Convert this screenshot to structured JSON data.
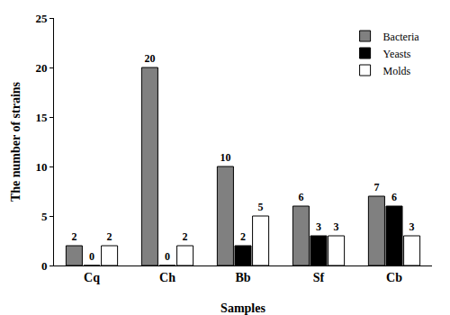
{
  "chart_data": {
    "type": "bar",
    "x_label": "Samples",
    "y_label": "The number of strains",
    "categories": [
      "Cq",
      "Ch",
      "Bb",
      "Sf",
      "Cb"
    ],
    "series": [
      {
        "name": "Bacteria",
        "color": "#808080",
        "values": [
          2,
          20,
          10,
          6,
          7
        ]
      },
      {
        "name": "Yeasts",
        "color": "#000000",
        "values": [
          0,
          0,
          2,
          3,
          6
        ]
      },
      {
        "name": "Molds",
        "color": "#ffffff",
        "values": [
          2,
          2,
          5,
          3,
          3
        ]
      }
    ],
    "ylim": [
      0,
      25
    ],
    "yticks": [
      0,
      5,
      10,
      15,
      20,
      25
    ],
    "grid": false,
    "legend": "top-right",
    "data_labels": true
  }
}
